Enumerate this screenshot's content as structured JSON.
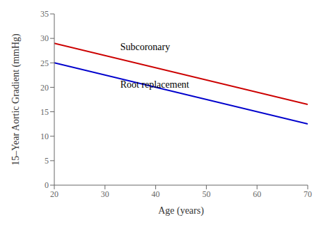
{
  "chart_data": {
    "type": "line",
    "x": [
      20,
      70
    ],
    "series": [
      {
        "color": "#cc0000",
        "values": [
          29.0,
          16.5
        ]
      },
      {
        "color": "#0000cc",
        "values": [
          25.0,
          12.5
        ]
      }
    ],
    "annotations": [
      {
        "text": "Subcoronary",
        "x": 33,
        "y": 27.2
      },
      {
        "text": "Root replacement",
        "x": 33,
        "y": 19.5
      }
    ],
    "xlabel": "Age (years)",
    "ylabel": "15–Year Aortic Gradient (mmHg)",
    "xlim": [
      20,
      70
    ],
    "ylim": [
      0,
      35
    ],
    "xticks": [
      20,
      30,
      40,
      50,
      60,
      70
    ],
    "yticks": [
      0,
      5,
      10,
      15,
      20,
      25,
      30,
      35
    ]
  }
}
